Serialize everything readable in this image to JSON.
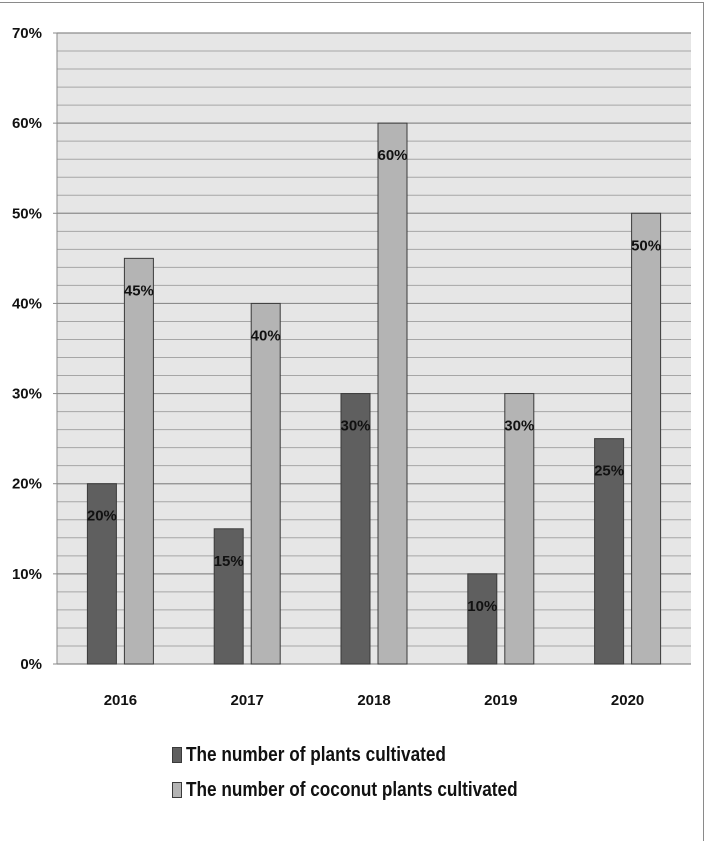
{
  "chart_data": {
    "type": "bar",
    "categories": [
      "2016",
      "2017",
      "2018",
      "2019",
      "2020"
    ],
    "series": [
      {
        "name": "The number of plants cultivated",
        "values": [
          20,
          15,
          30,
          10,
          25
        ],
        "color": "#5f5f5f"
      },
      {
        "name": "The number of coconut plants cultivated",
        "values": [
          45,
          40,
          60,
          30,
          50
        ],
        "color": "#b4b4b4"
      }
    ],
    "data_labels": [
      [
        "20%",
        "15%",
        "30%",
        "10%",
        "25%"
      ],
      [
        "45%",
        "40%",
        "60%",
        "30%",
        "50%"
      ]
    ],
    "y_tick_labels": [
      "0%",
      "10%",
      "20%",
      "30%",
      "40%",
      "50%",
      "60%",
      "70%"
    ],
    "ylim": [
      0,
      70
    ],
    "y_unit": "%",
    "grid": true,
    "legend_position": "bottom",
    "plot_background": "#e6e6e6"
  }
}
